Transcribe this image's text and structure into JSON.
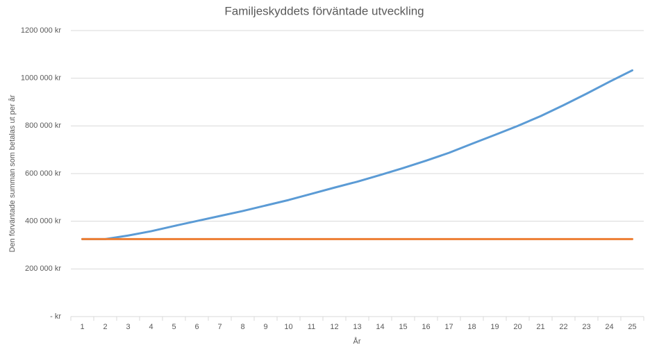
{
  "chart_data": {
    "type": "line",
    "title": "Familjeskyddets förväntade utveckling",
    "x_label": "År",
    "y_label": "Den förväntade summan som betalas ut per år",
    "categories": [
      1,
      2,
      3,
      4,
      5,
      6,
      7,
      8,
      9,
      10,
      11,
      12,
      13,
      14,
      15,
      16,
      17,
      18,
      19,
      20,
      21,
      22,
      23,
      24,
      25
    ],
    "series": [
      {
        "color": "#5b9bd5",
        "values": [
          325000,
          325000,
          340000,
          358000,
          380000,
          401000,
          422000,
          443000,
          466000,
          489000,
          515000,
          541000,
          566000,
          594000,
          623000,
          654000,
          687000,
          725000,
          762000,
          800000,
          841000,
          887000,
          935000,
          985000,
          1033000
        ]
      },
      {
        "color": "#ed7d31",
        "values": [
          325000,
          325000,
          325000,
          325000,
          325000,
          325000,
          325000,
          325000,
          325000,
          325000,
          325000,
          325000,
          325000,
          325000,
          325000,
          325000,
          325000,
          325000,
          325000,
          325000,
          325000,
          325000,
          325000,
          325000,
          325000
        ]
      }
    ],
    "ylim": [
      0,
      1200000
    ],
    "yticks": [
      {
        "value": 0,
        "label": "-  kr"
      },
      {
        "value": 200000,
        "label": "200 000 kr"
      },
      {
        "value": 400000,
        "label": "400 000 kr"
      },
      {
        "value": 600000,
        "label": "600 000 kr"
      },
      {
        "value": 800000,
        "label": "800 000 kr"
      },
      {
        "value": 1000000,
        "label": "1000 000 kr"
      },
      {
        "value": 1200000,
        "label": "1200 000 kr"
      }
    ],
    "grid": true
  }
}
